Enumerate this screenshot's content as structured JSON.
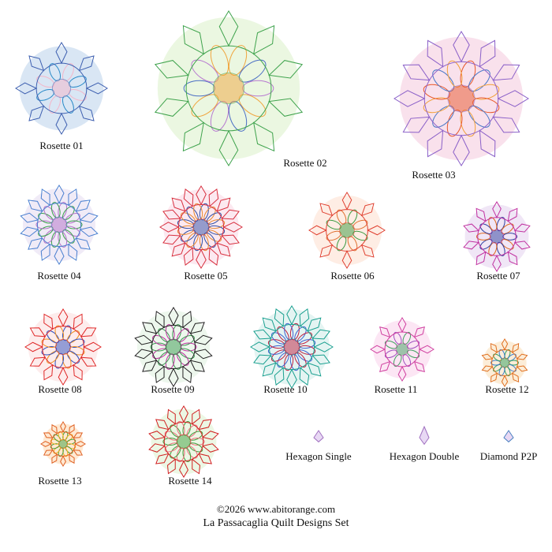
{
  "items": [
    {
      "label": "Rosette 01"
    },
    {
      "label": "Rosette 02"
    },
    {
      "label": "Rosette 03"
    },
    {
      "label": "Rosette 04"
    },
    {
      "label": "Rosette 05"
    },
    {
      "label": "Rosette 06"
    },
    {
      "label": "Rosette 07"
    },
    {
      "label": "Rosette 08"
    },
    {
      "label": "Rosette 09"
    },
    {
      "label": "Rosette 10"
    },
    {
      "label": "Rosette 11"
    },
    {
      "label": "Rosette 12"
    },
    {
      "label": "Rosette 13"
    },
    {
      "label": "Rosette 14"
    },
    {
      "label": "Hexagon Single"
    },
    {
      "label": "Hexagon Double"
    },
    {
      "label": "Diamond P2P"
    }
  ],
  "footer": {
    "copyright": "©2026 www.abitorange.com",
    "title": "La Passacaglia Quilt Designs Set"
  }
}
